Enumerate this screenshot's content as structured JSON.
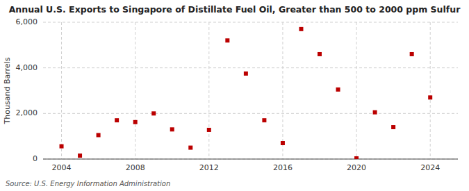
{
  "chart_data": {
    "type": "scatter",
    "title": "Annual U.S. Exports to Singapore of Distillate Fuel Oil, Greater than 500 to 2000 ppm Sulfur",
    "ylabel": "Thousand Barrels",
    "source": "Source: U.S. Energy Information Administration",
    "x": [
      2004,
      2005,
      2006,
      2007,
      2008,
      2009,
      2010,
      2011,
      2012,
      2013,
      2014,
      2015,
      2016,
      2017,
      2018,
      2019,
      2020,
      2021,
      2022,
      2023,
      2024
    ],
    "values": [
      560,
      150,
      1050,
      1700,
      1620,
      2000,
      1300,
      500,
      1280,
      5200,
      3750,
      1700,
      700,
      5700,
      4600,
      3050,
      30,
      2050,
      1400,
      4600,
      2700
    ],
    "color": "#BB0000",
    "marker": "square",
    "xlim": [
      2003,
      2025.5
    ],
    "xticks": [
      2004,
      2008,
      2012,
      2016,
      2020,
      2024
    ],
    "ylim": [
      0,
      6000
    ],
    "yticks": [
      0,
      {
        "value": 2000,
        "label": "2,000"
      },
      {
        "value": 4000,
        "label": "4,000"
      },
      {
        "value": 6000,
        "label": "6,000"
      }
    ],
    "grid": true
  }
}
